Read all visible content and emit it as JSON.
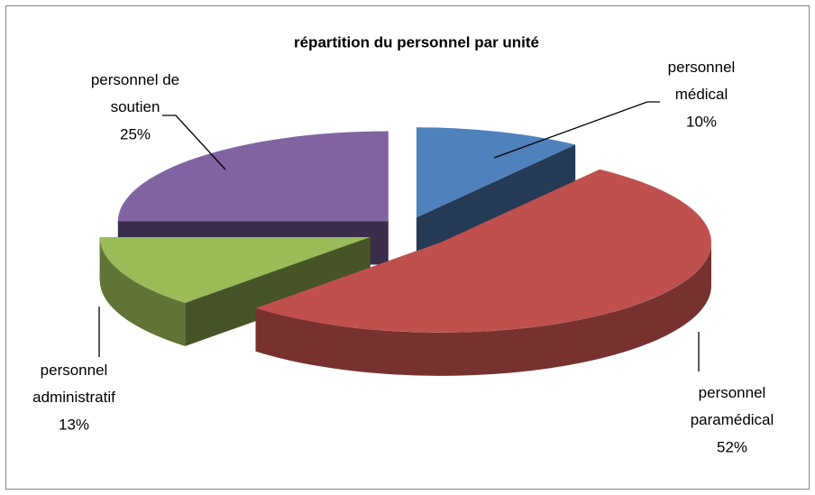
{
  "chart_data": {
    "type": "pie",
    "title": "répartition du personnel par unité",
    "categories": [
      "personnel médical",
      "personnel paramédical",
      "personnel administratif",
      "personnel de soutien"
    ],
    "values": [
      10,
      52,
      13,
      25
    ],
    "value_labels": [
      "10%",
      "52%",
      "13%",
      "25%"
    ],
    "colors": [
      "#4f81bd",
      "#c0504d",
      "#9bbb59",
      "#8064a2"
    ]
  }
}
